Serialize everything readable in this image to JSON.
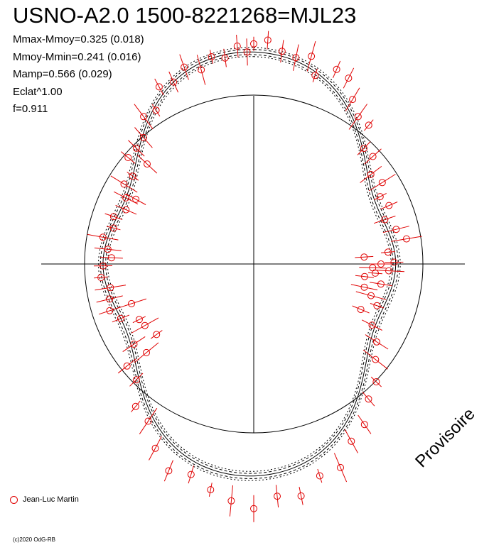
{
  "title": "USNO-A2.0 1500-8221268=MJL23",
  "stats": [
    "Mmax-Mmoy=0.325 (0.018)",
    "Mmoy-Mmin=0.241 (0.016)",
    "Mamp=0.566 (0.029)",
    "Eclat^1.00",
    "f=0.911"
  ],
  "watermark": "Provisoire",
  "legend_label": "Jean-Luc Martin",
  "copyright": "(c)2020 OdG-RB",
  "colors": {
    "observations": "#e00000",
    "curve": "#000000"
  },
  "chart_data": {
    "type": "scatter",
    "projection": "polar phase plot (phase = angle, magnitude = radius)",
    "f": 0.911,
    "fit": {
      "Mmax_minus_Mmoy": 0.325,
      "Mmoy_minus_Mmin": 0.241,
      "Mamp": 0.566
    },
    "series": [
      {
        "name": "Jean-Luc Martin",
        "points": [
          [
            0.0,
            -0.025
          ],
          [
            0.01,
            -0.04
          ],
          [
            0.021,
            -0.015
          ],
          [
            0.032,
            -0.01
          ],
          [
            0.043,
            -0.035
          ],
          [
            0.05,
            0.01
          ],
          [
            0.064,
            -0.05
          ],
          [
            0.075,
            -0.06
          ],
          [
            0.086,
            -0.03
          ],
          [
            0.098,
            -0.02
          ],
          [
            0.11,
            -0.045
          ],
          [
            0.121,
            -0.005
          ],
          [
            0.133,
            -0.03
          ],
          [
            0.146,
            -0.01
          ],
          [
            0.16,
            -0.04
          ],
          [
            0.172,
            -0.02
          ],
          [
            0.185,
            -0.035
          ],
          [
            0.198,
            -0.005
          ],
          [
            0.212,
            -0.025
          ],
          [
            0.224,
            -0.045
          ],
          [
            0.236,
            0.02
          ],
          [
            0.248,
            0.005
          ],
          [
            0.25,
            0.045
          ],
          [
            0.255,
            0.07
          ],
          [
            0.258,
            0.02
          ],
          [
            0.262,
            0.06
          ],
          [
            0.268,
            0.09
          ],
          [
            0.275,
            0.035
          ],
          [
            0.283,
            0.08
          ],
          [
            0.292,
            0.05
          ],
          [
            0.302,
            0.02
          ],
          [
            0.314,
            0.06
          ],
          [
            0.326,
            0.01
          ],
          [
            0.34,
            -0.02
          ],
          [
            0.356,
            -0.03
          ],
          [
            0.372,
            -0.05
          ],
          [
            0.388,
            -0.04
          ],
          [
            0.404,
            -0.06
          ],
          [
            0.42,
            -0.05
          ],
          [
            0.436,
            -0.08
          ],
          [
            0.452,
            -0.06
          ],
          [
            0.468,
            -0.09
          ],
          [
            0.484,
            -0.07
          ],
          [
            0.5,
            -0.1
          ],
          [
            0.515,
            -0.08
          ],
          [
            0.53,
            -0.06
          ],
          [
            0.546,
            -0.04
          ],
          [
            0.562,
            -0.07
          ],
          [
            0.578,
            -0.05
          ],
          [
            0.594,
            -0.02
          ],
          [
            0.61,
            -0.04
          ],
          [
            0.626,
            -0.01
          ],
          [
            0.642,
            -0.03
          ],
          [
            0.656,
            0.01
          ],
          [
            0.668,
            0.06
          ],
          [
            0.678,
            0.05
          ],
          [
            0.688,
            0.0
          ],
          [
            0.7,
            -0.02
          ],
          [
            0.712,
            -0.005
          ],
          [
            0.724,
            0.01
          ],
          [
            0.736,
            -0.01
          ],
          [
            0.748,
            0.0
          ],
          [
            0.757,
            0.025
          ],
          [
            0.766,
            0.01
          ],
          [
            0.778,
            -0.015
          ],
          [
            0.79,
            0.005
          ],
          [
            0.802,
            -0.01
          ],
          [
            0.814,
            0.015
          ],
          [
            0.826,
            0.0
          ],
          [
            0.838,
            -0.02
          ],
          [
            0.85,
            0.0
          ],
          [
            0.862,
            -0.03
          ],
          [
            0.874,
            -0.01
          ],
          [
            0.886,
            0.005
          ],
          [
            0.898,
            -0.02
          ],
          [
            0.91,
            0.01
          ],
          [
            0.922,
            -0.025
          ],
          [
            0.934,
            0.0
          ],
          [
            0.946,
            -0.015
          ],
          [
            0.958,
            0.02
          ],
          [
            0.968,
            -0.005
          ],
          [
            0.978,
            0.01
          ],
          [
            0.988,
            -0.02
          ],
          [
            0.995,
            0.0
          ],
          [
            0.64,
            0.045
          ],
          [
            0.65,
            0.09
          ],
          [
            0.24,
            0.095
          ],
          [
            0.83,
            0.03
          ],
          [
            0.87,
            0.04
          ],
          [
            0.7,
            0.05
          ]
        ]
      }
    ]
  }
}
